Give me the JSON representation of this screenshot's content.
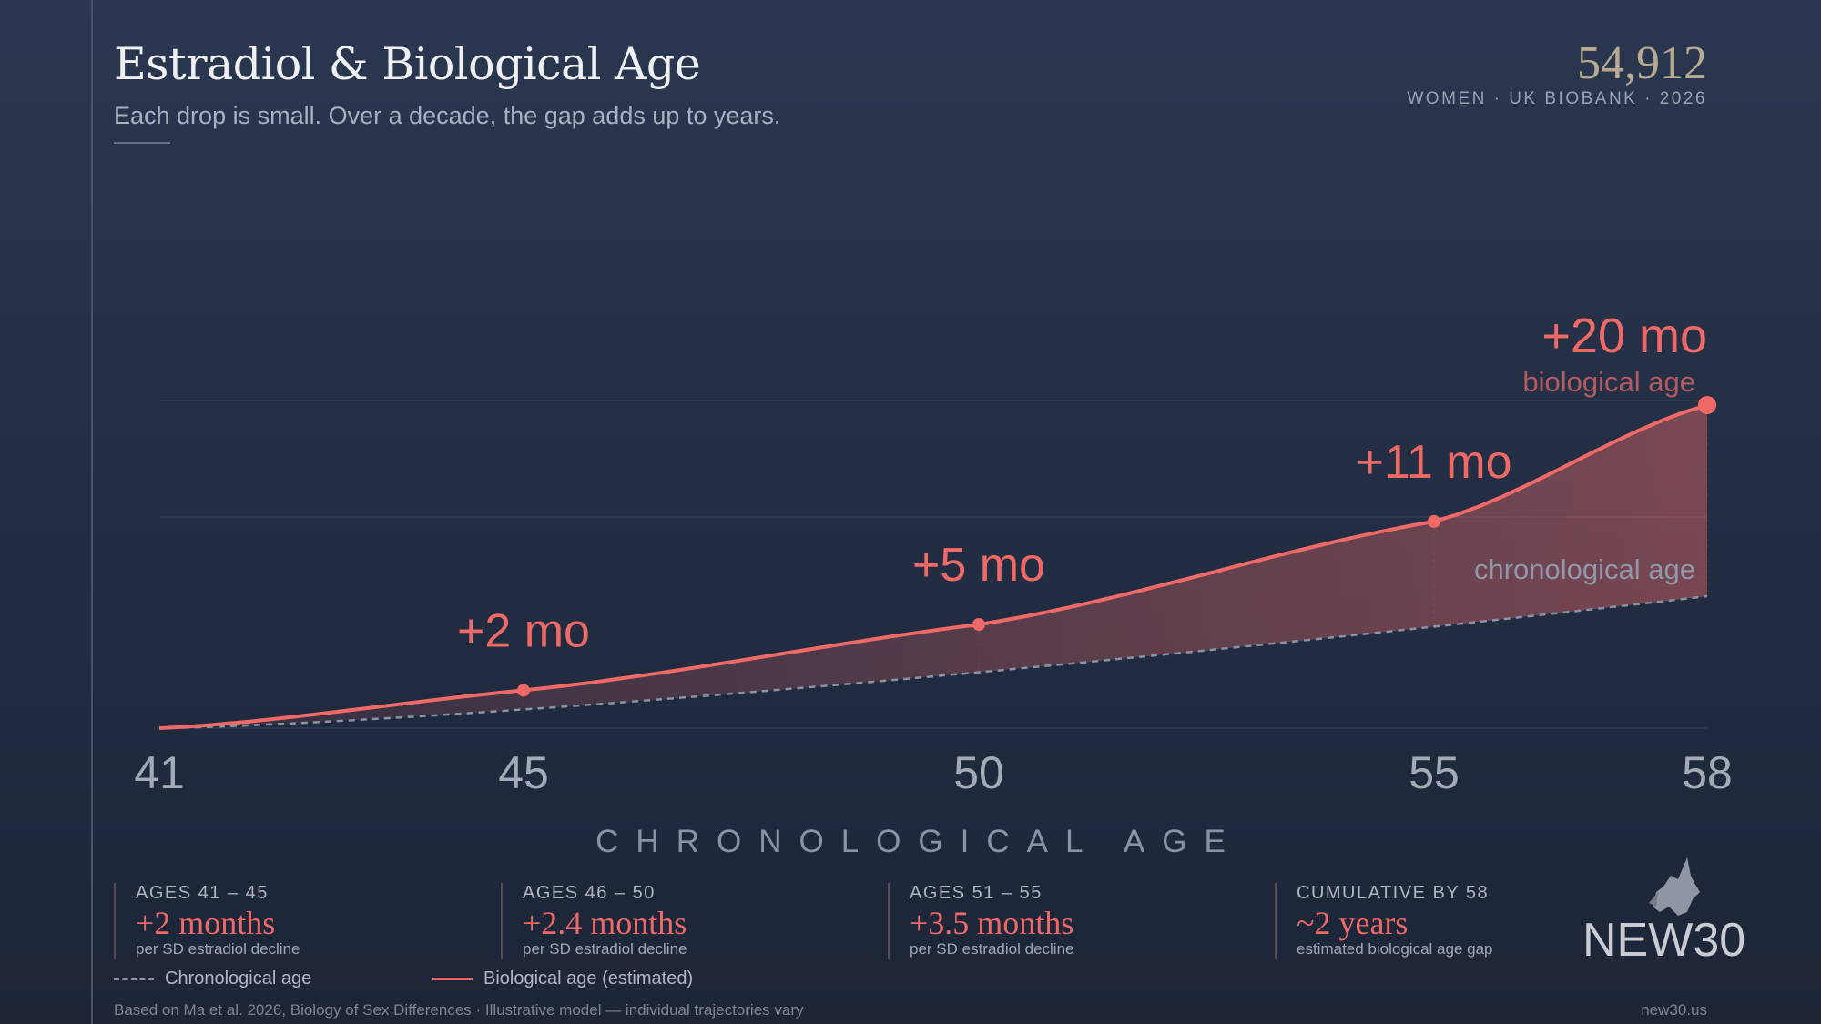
{
  "header": {
    "title": "Estradiol & Biological Age",
    "subtitle": "Each drop is small. Over a decade, the gap adds up to years.",
    "sample_size": "54,912",
    "sample_label": "WOMEN · UK BIOBANK · 2026"
  },
  "chart_data": {
    "type": "area",
    "xlabel": "CHRONOLOGICAL AGE",
    "x_ticks": [
      "41",
      "45",
      "50",
      "55",
      "58"
    ],
    "xlim": [
      41,
      58
    ],
    "series": [
      {
        "name": "Chronological age",
        "style": "dashed",
        "color": "#8a93a6",
        "x": [
          41,
          45,
          50,
          55,
          58
        ],
        "y": [
          41,
          45,
          50,
          55,
          58
        ]
      },
      {
        "name": "Biological age (estimated)",
        "style": "solid",
        "color": "#ef6a67",
        "x": [
          41,
          45,
          50,
          55,
          58
        ],
        "gap_months": [
          0,
          2,
          5,
          11,
          20
        ]
      }
    ],
    "annotations": [
      {
        "x": 45,
        "text": "+2 mo"
      },
      {
        "x": 50,
        "text": "+5 mo"
      },
      {
        "x": 55,
        "text": "+11 mo"
      },
      {
        "x": 58,
        "text": "+20 mo"
      }
    ],
    "line_labels": {
      "bio": "biological age",
      "chrono": "chronological age"
    },
    "fill_color": "#ef6a67"
  },
  "cards": [
    {
      "label": "AGES 41 – 45",
      "value": "+2 months",
      "note": "per SD estradiol decline"
    },
    {
      "label": "AGES 46 – 50",
      "value": "+2.4 months",
      "note": "per SD estradiol decline"
    },
    {
      "label": "AGES 51 – 55",
      "value": "+3.5 months",
      "note": "per SD estradiol decline"
    },
    {
      "label": "CUMULATIVE BY 58",
      "value": "~2 years",
      "note": "estimated biological age gap"
    }
  ],
  "legend": {
    "chrono": "Chronological age",
    "bio": "Biological age (estimated)"
  },
  "footer": {
    "source": "Based on Ma et al. 2026, Biology of Sex Differences · Illustrative model — individual trajectories vary",
    "site": "new30.us"
  },
  "logo": {
    "text": "NEW30",
    "icon": "unicorn-icon"
  }
}
